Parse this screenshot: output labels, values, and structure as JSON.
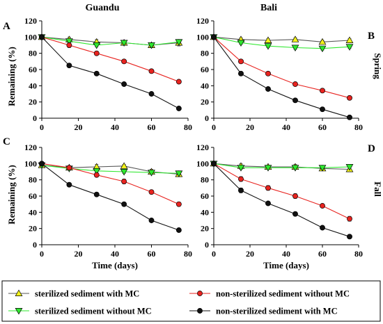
{
  "figure": {
    "legend": [
      {
        "key": "sms",
        "label": "sterilized sediment with MC",
        "color": "#f2f21a",
        "marker": "triangle-up"
      },
      {
        "key": "nswo",
        "label": "non-sterilized sediment without MC",
        "color": "#e8231f",
        "marker": "circle"
      },
      {
        "key": "swo",
        "label": "sterilized sediment without MC",
        "color": "#2ee82e",
        "marker": "triangle-down"
      },
      {
        "key": "nsw",
        "label": "non-sterilized sediment with MC",
        "color": "#111111",
        "marker": "circle"
      }
    ]
  },
  "chart_data": [
    {
      "panel": "A",
      "title": "Guandu",
      "side_label": "",
      "type": "line",
      "ylabel": "Remaining (%)",
      "xlabel": "",
      "xlim": [
        0,
        80
      ],
      "ylim": [
        0,
        120
      ],
      "xticks": [
        0,
        20,
        40,
        60,
        80
      ],
      "yticks": [
        0,
        20,
        40,
        60,
        80,
        100,
        120
      ],
      "x": [
        0,
        15,
        30,
        45,
        60,
        75
      ],
      "series": [
        {
          "key": "sms",
          "values": [
            100,
            97,
            94,
            93,
            90,
            93
          ],
          "errors": [
            2,
            3,
            3,
            2,
            2,
            4
          ]
        },
        {
          "key": "swo",
          "values": [
            100,
            95,
            90,
            93,
            90,
            94
          ],
          "errors": [
            2,
            2,
            2,
            2,
            2,
            2
          ]
        },
        {
          "key": "nswo",
          "values": [
            100,
            90,
            80,
            70,
            58,
            45
          ],
          "errors": [
            1,
            3,
            1,
            1,
            1,
            1
          ]
        },
        {
          "key": "nsw",
          "values": [
            100,
            65,
            55,
            42,
            30,
            12
          ],
          "errors": [
            1,
            1,
            1,
            1,
            1,
            1
          ]
        }
      ]
    },
    {
      "panel": "B",
      "title": "Bali",
      "side_label": "Spring",
      "type": "line",
      "ylabel": "",
      "xlabel": "",
      "xlim": [
        0,
        80
      ],
      "ylim": [
        0,
        120
      ],
      "xticks": [
        0,
        20,
        40,
        60,
        80
      ],
      "yticks": [
        0,
        20,
        40,
        60,
        80,
        100,
        120
      ],
      "x": [
        0,
        15,
        30,
        45,
        60,
        75
      ],
      "series": [
        {
          "key": "sms",
          "values": [
            100,
            97,
            96,
            97,
            94,
            96
          ],
          "errors": [
            2,
            2,
            2,
            2,
            2,
            2
          ]
        },
        {
          "key": "swo",
          "values": [
            100,
            93,
            89,
            87,
            86,
            88
          ],
          "errors": [
            2,
            2,
            2,
            2,
            2,
            2
          ]
        },
        {
          "key": "nswo",
          "values": [
            100,
            70,
            55,
            42,
            34,
            25
          ],
          "errors": [
            2,
            2,
            2,
            1,
            1,
            1
          ]
        },
        {
          "key": "nsw",
          "values": [
            100,
            55,
            36,
            22,
            11,
            1
          ],
          "errors": [
            2,
            2,
            1,
            1,
            1,
            1
          ]
        }
      ]
    },
    {
      "panel": "C",
      "title": "",
      "side_label": "",
      "type": "line",
      "ylabel": "Remaining (%)",
      "xlabel": "Time (days)",
      "xlim": [
        0,
        80
      ],
      "ylim": [
        0,
        120
      ],
      "xticks": [
        0,
        20,
        40,
        60,
        80
      ],
      "yticks": [
        0,
        20,
        40,
        60,
        80,
        100,
        120
      ],
      "x": [
        0,
        15,
        30,
        45,
        60,
        75
      ],
      "series": [
        {
          "key": "sms",
          "values": [
            98,
            95,
            96,
            97,
            90,
            87
          ],
          "errors": [
            3,
            2,
            3,
            2,
            3,
            2
          ]
        },
        {
          "key": "swo",
          "values": [
            98,
            94,
            91,
            90,
            89,
            88
          ],
          "errors": [
            3,
            2,
            2,
            2,
            2,
            2
          ]
        },
        {
          "key": "nswo",
          "values": [
            100,
            95,
            86,
            78,
            65,
            50
          ],
          "errors": [
            2,
            2,
            2,
            3,
            2,
            2
          ]
        },
        {
          "key": "nsw",
          "values": [
            100,
            74,
            62,
            50,
            30,
            18
          ],
          "errors": [
            2,
            1,
            1,
            1,
            1,
            1
          ]
        }
      ]
    },
    {
      "panel": "D",
      "title": "",
      "side_label": "Fall",
      "type": "line",
      "ylabel": "",
      "xlabel": "Time (days)",
      "xlim": [
        0,
        80
      ],
      "ylim": [
        0,
        120
      ],
      "xticks": [
        0,
        20,
        40,
        60,
        80
      ],
      "yticks": [
        0,
        20,
        40,
        60,
        80,
        100,
        120
      ],
      "x": [
        0,
        15,
        30,
        45,
        60,
        75
      ],
      "series": [
        {
          "key": "sms",
          "values": [
            100,
            97,
            96,
            96,
            94,
            93
          ],
          "errors": [
            2,
            3,
            2,
            3,
            2,
            3
          ]
        },
        {
          "key": "swo",
          "values": [
            100,
            95,
            95,
            95,
            95,
            96
          ],
          "errors": [
            2,
            2,
            2,
            2,
            2,
            2
          ]
        },
        {
          "key": "nswo",
          "values": [
            100,
            81,
            70,
            60,
            48,
            32
          ],
          "errors": [
            2,
            3,
            3,
            3,
            2,
            3
          ]
        },
        {
          "key": "nsw",
          "values": [
            100,
            67,
            51,
            38,
            21,
            10
          ],
          "errors": [
            2,
            3,
            2,
            2,
            1,
            1
          ]
        }
      ]
    }
  ]
}
